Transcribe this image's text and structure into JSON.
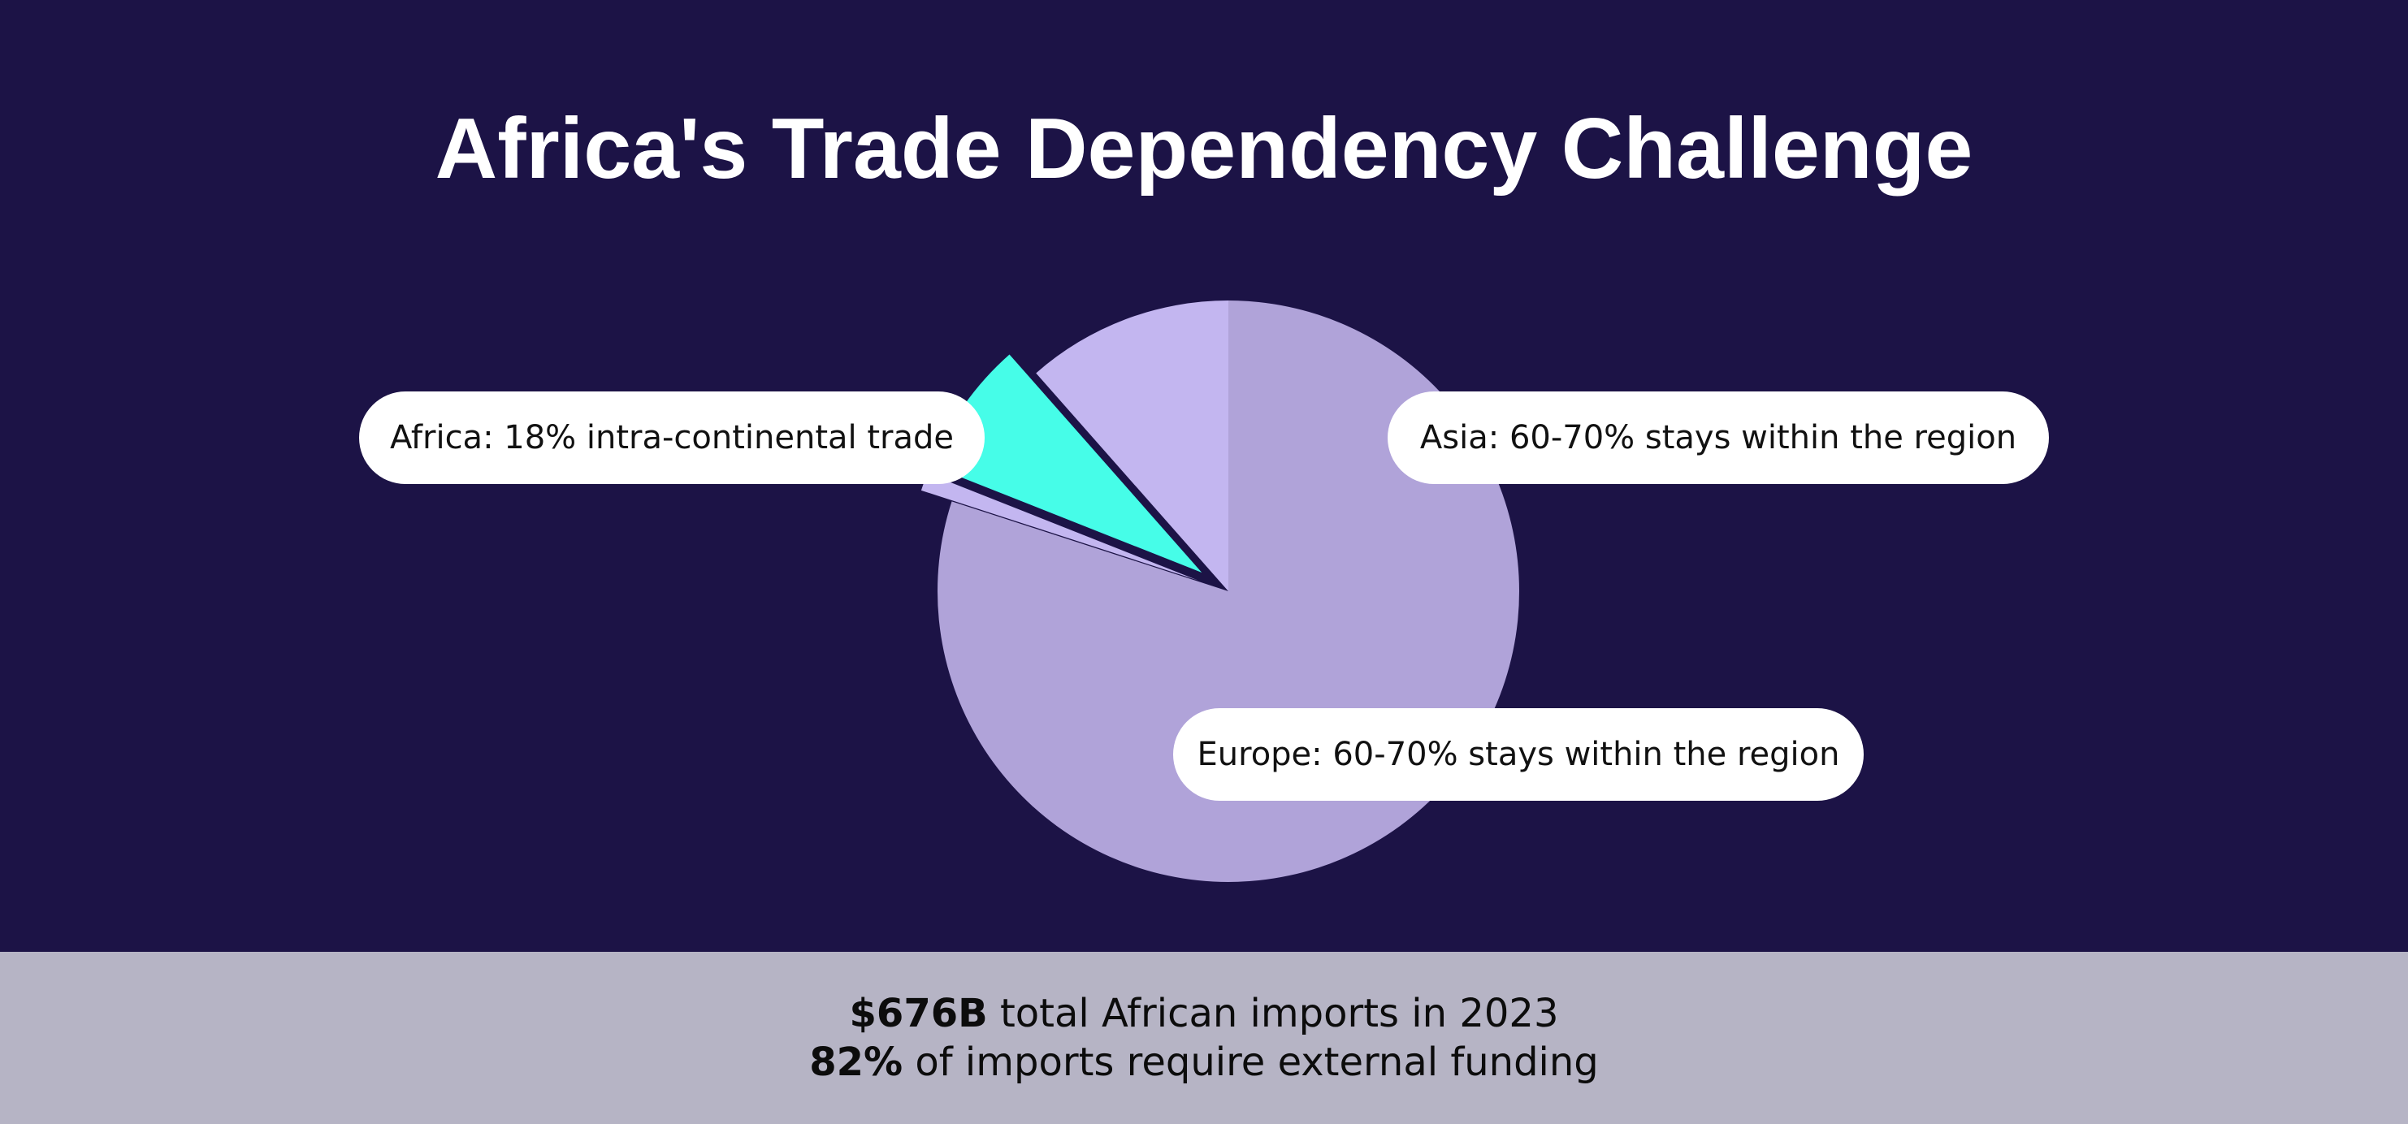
{
  "chart_data": {
    "type": "pie",
    "title": "Africa's Trade Dependency Challenge",
    "slices": [
      {
        "key": "other",
        "value": 80,
        "color": "#b0a3d9",
        "exploded": false
      },
      {
        "key": "minor",
        "value": 1,
        "color": "#c3b6f0",
        "exploded": true
      },
      {
        "key": "highlight",
        "value": 7.5,
        "color": "#46fde8",
        "exploded": true
      },
      {
        "key": "secondary",
        "value": 11.5,
        "color": "#c3b6f0",
        "exploded": false
      }
    ],
    "annotations": [
      {
        "id": "africa",
        "text": "Africa: 18% intra-continental trade"
      },
      {
        "id": "asia",
        "text": "Asia: 60-70% stays within the region"
      },
      {
        "id": "europe",
        "text": "Europe: 60-70% stays within the region"
      }
    ]
  },
  "footer": {
    "line1_bold": "$676B",
    "line1_rest": " total African imports in 2023",
    "line2_bold": "82%",
    "line2_rest": " of imports require external funding"
  },
  "colors": {
    "background": "#1c1346",
    "footer_background": "#b6b4c5",
    "accent": "#46fde8"
  }
}
